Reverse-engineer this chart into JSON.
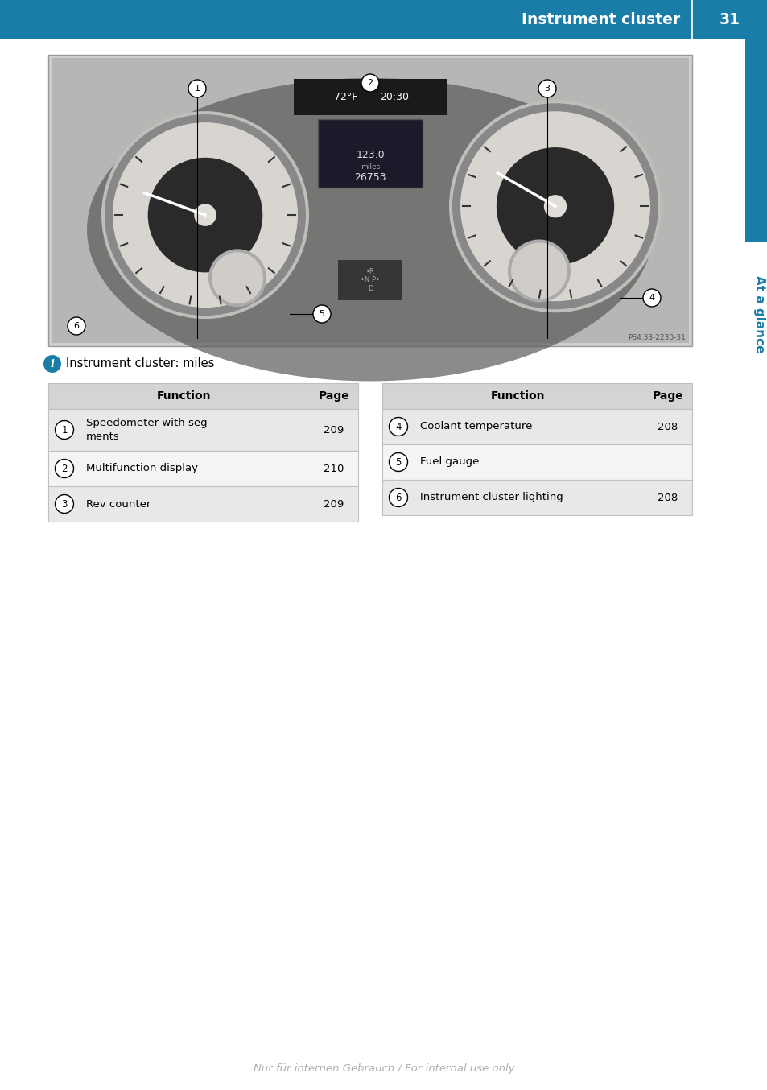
{
  "page_bg": "#ffffff",
  "header_bg": "#1a7da8",
  "header_text": "Instrument cluster",
  "header_page_num": "31",
  "info_label": "Instrument cluster: miles",
  "footer_text": "Nur für internen Gebrauch / For internal use only",
  "footer_color": "#b0b0b0",
  "sidebar_text": "At a glance",
  "sidebar_text_color": "#1a7da8",
  "sidebar_blue_rect_color": "#1a7da8",
  "table_left": {
    "header_row": [
      "Function",
      "Page"
    ],
    "rows": [
      {
        "num": "1",
        "function": "Speedometer with seg-\nments",
        "page": "209"
      },
      {
        "num": "2",
        "function": "Multifunction display",
        "page": "210"
      },
      {
        "num": "3",
        "function": "Rev counter",
        "page": "209"
      }
    ]
  },
  "table_right": {
    "header_row": [
      "Function",
      "Page"
    ],
    "rows": [
      {
        "num": "4",
        "function": "Coolant temperature",
        "page": "208"
      },
      {
        "num": "5",
        "function": "Fuel gauge",
        "page": ""
      },
      {
        "num": "6",
        "function": "Instrument cluster lighting",
        "page": "208"
      }
    ]
  },
  "image_ref": "PS4.33-2230-31",
  "table_header_bg": "#d4d4d4",
  "table_row0_bg": "#e8e8e8",
  "table_row1_bg": "#f4f4f4",
  "table_border_color": "#c0c0c0",
  "info_icon_color": "#1a7da8",
  "img_bg": "#d0cece",
  "img_inner_bg": "#b8b6b4",
  "gauge_bg": "#787878",
  "gauge_inner": "#404040",
  "gauge_face": "#d0ccc8"
}
